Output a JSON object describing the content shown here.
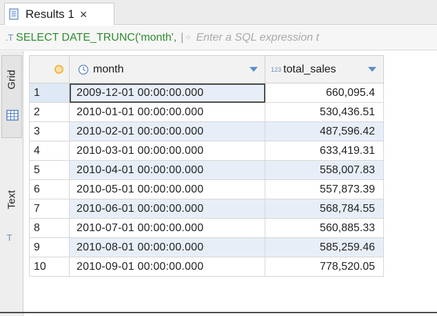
{
  "tab": {
    "label": "Results 1",
    "close_label": "×"
  },
  "query": {
    "sql_icon": ".T",
    "sql_text": "SELECT DATE_TRUNC('month',",
    "divider": "|",
    "filter_placeholder": "Enter a SQL expression t"
  },
  "side": {
    "grid_label": "Grid",
    "text_label": "Text"
  },
  "columns": [
    {
      "name": "month",
      "type_icon": "clock-icon"
    },
    {
      "name": "total_sales",
      "type_badge": "123"
    }
  ],
  "rows": [
    {
      "n": "1",
      "month": "2009-12-01 00:00:00.000",
      "total_sales": "660,095.4"
    },
    {
      "n": "2",
      "month": "2010-01-01 00:00:00.000",
      "total_sales": "530,436.51"
    },
    {
      "n": "3",
      "month": "2010-02-01 00:00:00.000",
      "total_sales": "487,596.42"
    },
    {
      "n": "4",
      "month": "2010-03-01 00:00:00.000",
      "total_sales": "633,419.31"
    },
    {
      "n": "5",
      "month": "2010-04-01 00:00:00.000",
      "total_sales": "558,007.83"
    },
    {
      "n": "6",
      "month": "2010-05-01 00:00:00.000",
      "total_sales": "557,873.39"
    },
    {
      "n": "7",
      "month": "2010-06-01 00:00:00.000",
      "total_sales": "568,784.55"
    },
    {
      "n": "8",
      "month": "2010-07-01 00:00:00.000",
      "total_sales": "560,885.33"
    },
    {
      "n": "9",
      "month": "2010-08-01 00:00:00.000",
      "total_sales": "585,259.46"
    },
    {
      "n": "10",
      "month": "2010-09-01 00:00:00.000",
      "total_sales": "778,520.05"
    }
  ],
  "colors": {
    "sql_green": "#2e8b2e",
    "row_alt": "#e7eef8",
    "sort_blue": "#5a8fc8",
    "rownum_icon": "#f2b64a"
  }
}
